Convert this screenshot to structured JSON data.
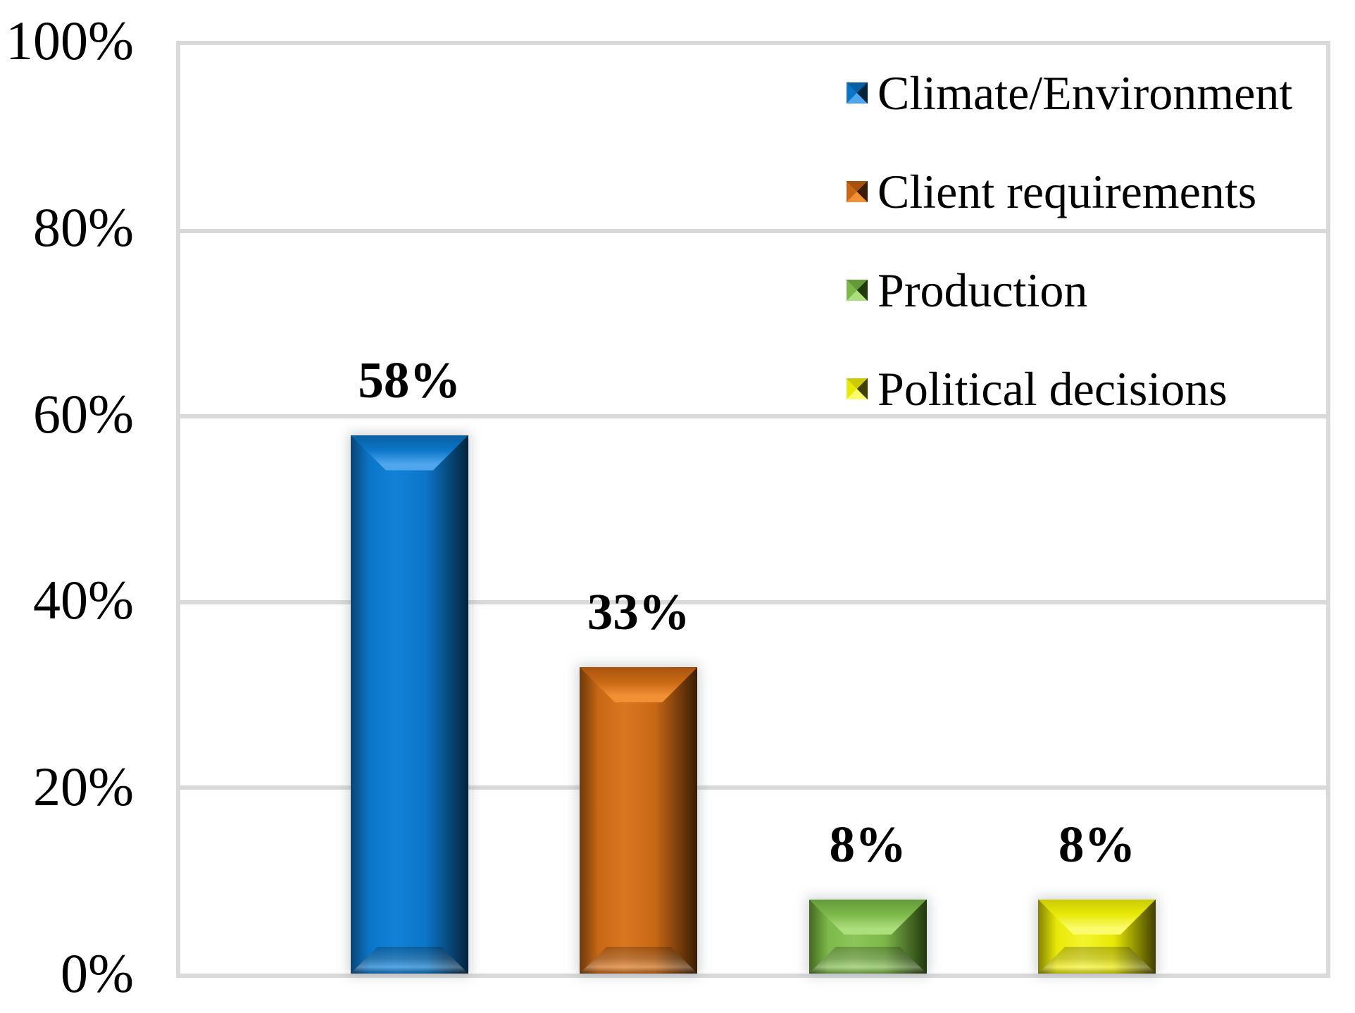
{
  "chart_data": {
    "type": "bar",
    "title": "",
    "xlabel": "",
    "ylabel": "",
    "ylim": [
      0,
      100
    ],
    "grid": true,
    "legend_position": "top-right",
    "categories": [
      "Climate/Environment",
      "Client requirements",
      "Production",
      "Political decisions"
    ],
    "values": [
      58,
      33,
      8,
      8
    ],
    "value_labels": [
      "58%",
      "33%",
      "8%",
      "8%"
    ],
    "y_ticks": [
      {
        "value": 0,
        "label": "0%"
      },
      {
        "value": 20,
        "label": "20%"
      },
      {
        "value": 40,
        "label": "40%"
      },
      {
        "value": 60,
        "label": "60%"
      },
      {
        "value": 80,
        "label": "80%"
      },
      {
        "value": 100,
        "label": "100%"
      }
    ],
    "series_colors": [
      {
        "main": "#0B76C8",
        "mid": "#1281D6",
        "light": "#4FA6EC",
        "darkL": "#0A4573",
        "darkR": "#05233B",
        "capTop": "#0A5FA0"
      },
      {
        "main": "#C96814",
        "mid": "#D97720",
        "light": "#F29036",
        "darkL": "#6E3908",
        "darkR": "#3A1D04",
        "capTop": "#A75310"
      },
      {
        "main": "#7DB84A",
        "mid": "#8CC65A",
        "light": "#ABDE7C",
        "darkL": "#44691F",
        "darkR": "#22380D",
        "capTop": "#659A3B"
      },
      {
        "main": "#E9E907",
        "mid": "#F3F32E",
        "light": "#FBFB6E",
        "darkL": "#838302",
        "darkR": "#404000",
        "capTop": "#CACA06"
      }
    ],
    "gridline_color": "#D9D9D9"
  }
}
